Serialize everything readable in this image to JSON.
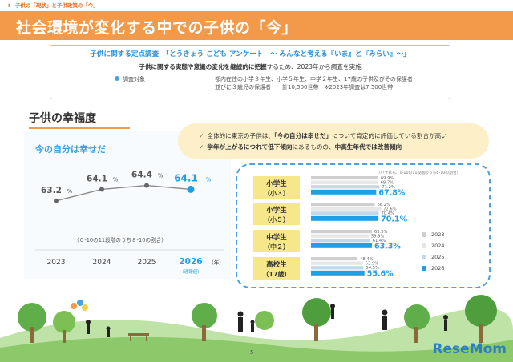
{
  "header": {
    "section_tag": "Ⅰ　子供の「現状」と子供政策の「今」",
    "title": "社会環境が変化する中での子供の「今」"
  },
  "survey": {
    "heading": "子供に関する定点調査　「とうきょう こども アンケート　～ みんなと考える『いま』と『みらい』～」",
    "description_bold": "子供に関する実態や意識の変化を継続的に把握",
    "description_rest": "するため、2023年から調査を実施",
    "target_label": "調査対象",
    "target_line1": "都内在住の小学３年生、小学５年生、中学２年生、17歳の子供及びその保護者",
    "target_line2": "並びに３歳児の保護者　　計10,500世帯　※2023年調査は7,500世帯"
  },
  "section": {
    "title": "子供の幸福度",
    "subtitle": "今の自分は幸せだ"
  },
  "callout": {
    "line1_pre": "全体的に東京の子供は、",
    "line1_bold": "「今の自分は幸せだ」",
    "line1_post": "について肯定的に評価している割合が高い",
    "line2_a": "学年が上がるにつれて低下傾向",
    "line2_b": "にあるものの、",
    "line2_c": "中高生年代では改善傾向"
  },
  "note": "（いずれも、0-10の11段階のうち8-10の割合）",
  "colors": {
    "orange": "#f29a4a",
    "blue": "#1fa0e6",
    "line_gray": "#8a8a8a",
    "bar_2023": "#cfcfcf",
    "bar_2024": "#e6e6e6",
    "bar_2025": "#c2d8e8",
    "bar_2026": "#1fa0e6"
  },
  "chart_data": [
    {
      "type": "line",
      "x": [
        "2023",
        "2024",
        "2025",
        "2026"
      ],
      "x_suffix": "（年）",
      "x_sublabel_2026": "（速報値）",
      "values": [
        63.2,
        64.1,
        64.4,
        64.1
      ],
      "value_labels": [
        "63.2",
        "64.1",
        "64.4",
        "64.1"
      ],
      "unit": "%",
      "range_note": "（０-10の11段階のうち８-10の割合）",
      "highlight_last": true
    },
    {
      "type": "bar",
      "orientation": "horizontal",
      "categories": [
        {
          "line1": "小学生",
          "line2": "（小３）"
        },
        {
          "line1": "小学生",
          "line2": "（小５）"
        },
        {
          "line1": "中学生",
          "line2": "（中２）"
        },
        {
          "line1": "高校生",
          "line2": "（17歳）"
        }
      ],
      "series": [
        {
          "name": "2023",
          "values": [
            69.9,
            66.2,
            63.3,
            48.4
          ]
        },
        {
          "name": "2024",
          "values": [
            69.7,
            72.6,
            59.9,
            53.9
          ]
        },
        {
          "name": "2025",
          "values": [
            71.2,
            70.4,
            61.4,
            54.5
          ]
        },
        {
          "name": "2026",
          "values": [
            67.8,
            70.1,
            63.3,
            55.6
          ]
        }
      ],
      "value_labels": [
        [
          "69.9%",
          "69.7%",
          "71.2%",
          "67.8%"
        ],
        [
          "66.2%",
          "72.6%",
          "70.4%",
          "70.1%"
        ],
        [
          "63.3%",
          "59.9%",
          "61.4%",
          "63.3%"
        ],
        [
          "48.4%",
          "53.9%",
          "54.5%",
          "55.6%"
        ]
      ],
      "xlim": [
        0,
        100
      ],
      "legend_position": "right"
    }
  ],
  "footer": {
    "page_number": "5",
    "watermark": "ReseMom"
  }
}
